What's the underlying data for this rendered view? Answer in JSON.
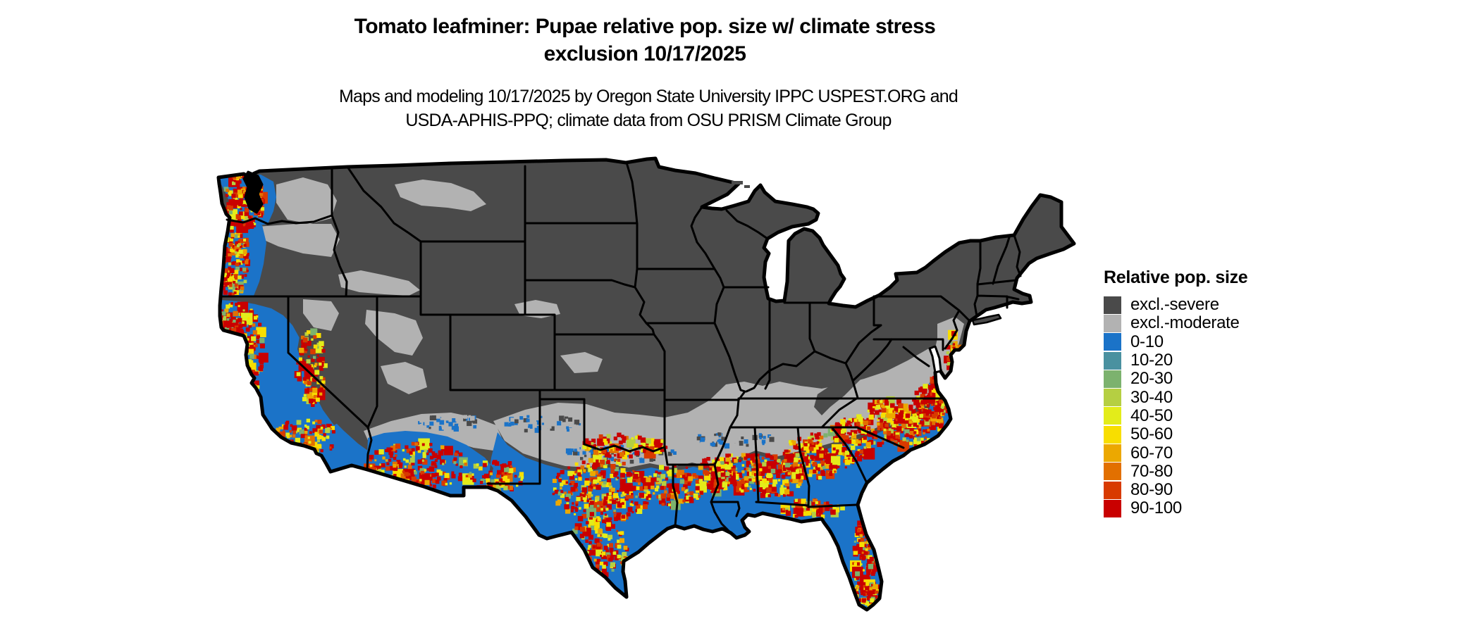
{
  "title": {
    "line1": "Tomato leafminer: Pupae relative pop. size w/ climate stress",
    "line2": "exclusion 10/17/2025"
  },
  "subtitle": {
    "line1": "Maps and modeling 10/17/2025 by Oregon State University IPPC USPEST.ORG and",
    "line2": "USDA-APHIS-PPQ; climate data from OSU PRISM Climate Group"
  },
  "legend": {
    "title": "Relative pop. size",
    "items": [
      {
        "key": "severe",
        "label": "excl.-severe",
        "color": "#4a4a4a"
      },
      {
        "key": "moderate",
        "label": "excl.-moderate",
        "color": "#b2b2b2"
      },
      {
        "key": "p0",
        "label": "0-10",
        "color": "#1b73c8"
      },
      {
        "key": "p10",
        "label": "10-20",
        "color": "#4a91a0"
      },
      {
        "key": "p20",
        "label": "20-30",
        "color": "#7cb26e"
      },
      {
        "key": "p30",
        "label": "30-40",
        "color": "#b5cf42"
      },
      {
        "key": "p40",
        "label": "40-50",
        "color": "#e3ec1a"
      },
      {
        "key": "p50",
        "label": "50-60",
        "color": "#f8de00"
      },
      {
        "key": "p60",
        "label": "60-70",
        "color": "#eca800"
      },
      {
        "key": "p70",
        "label": "70-80",
        "color": "#e27000"
      },
      {
        "key": "p80",
        "label": "80-90",
        "color": "#d83a00"
      },
      {
        "key": "p90",
        "label": "90-100",
        "color": "#c90000"
      }
    ]
  },
  "map": {
    "background": "#ffffff",
    "border_color": "#000000",
    "water_color": "#ffffff"
  }
}
